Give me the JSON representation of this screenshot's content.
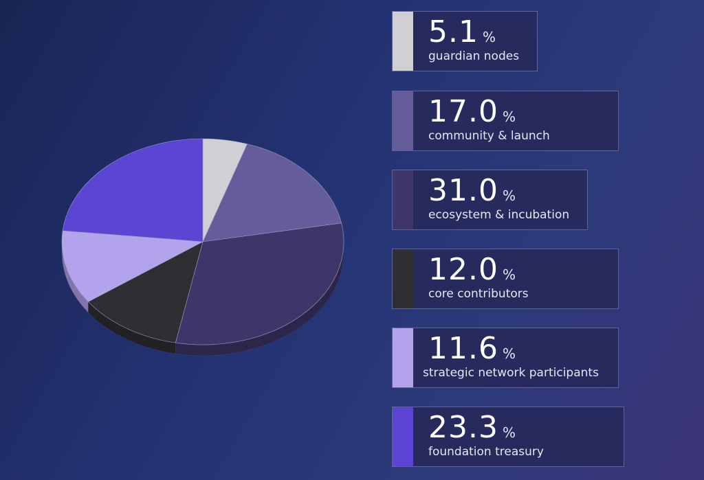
{
  "chart_data": {
    "type": "pie",
    "slices": [
      {
        "label": "guardian nodes",
        "value": 5.1,
        "color": "#cfcfd4"
      },
      {
        "label": "community & launch",
        "value": 17.0,
        "color": "#655d9b"
      },
      {
        "label": "ecosystem & incubation",
        "value": 31.0,
        "color": "#3e3568"
      },
      {
        "label": "core contributors",
        "value": 12.0,
        "color": "#2f2f33"
      },
      {
        "label": "strategic network participants",
        "value": 11.6,
        "color": "#b3a2ec"
      },
      {
        "label": "foundation treasury",
        "value": 23.3,
        "color": "#5b45d2"
      }
    ],
    "unit": "%"
  },
  "legend": [
    {
      "value": "5.1",
      "unit": "%",
      "label": "guardian nodes",
      "color": "#cfcfd4"
    },
    {
      "value": "17.0",
      "unit": "%",
      "label": "community & launch",
      "color": "#655d9b"
    },
    {
      "value": "31.0",
      "unit": "%",
      "label": "ecosystem & incubation",
      "color": "#3e3568"
    },
    {
      "value": "12.0",
      "unit": "%",
      "label": "core contributors",
      "color": "#2f2f33"
    },
    {
      "value": "11.6",
      "unit": "%",
      "label": "strategic network participants",
      "color": "#b3a2ec"
    },
    {
      "value": "23.3",
      "unit": "%",
      "label": "foundation treasury",
      "color": "#5b45d2"
    }
  ]
}
